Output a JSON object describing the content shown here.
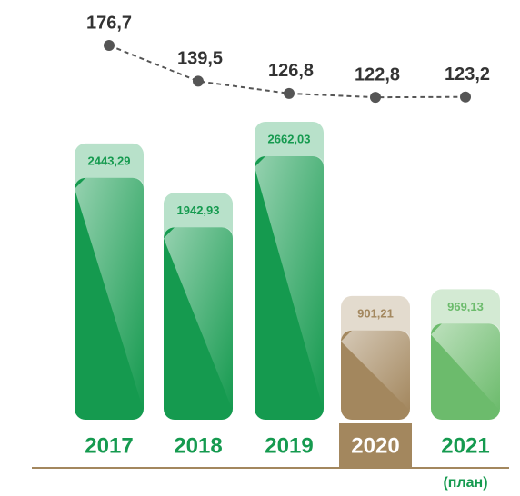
{
  "chart_data": {
    "type": "bar",
    "categories": [
      "2017",
      "2018",
      "2019",
      "2020",
      "2021"
    ],
    "values": [
      2443.29,
      1942.93,
      2662.03,
      901.21,
      969.13
    ],
    "value_labels": [
      "2443,29",
      "1942,93",
      "2662,03",
      "901,21",
      "969,13"
    ],
    "colors": [
      "#159a4f",
      "#159a4f",
      "#159a4f",
      "#a3875e",
      "#6cbb6c"
    ],
    "line": {
      "type": "line",
      "color": "#555555",
      "values": [
        176.7,
        139.5,
        126.8,
        122.8,
        123.2
      ],
      "value_labels": [
        "176,7",
        "139,5",
        "126,8",
        "122,8",
        "123,2"
      ]
    },
    "annotation": "(план)"
  }
}
